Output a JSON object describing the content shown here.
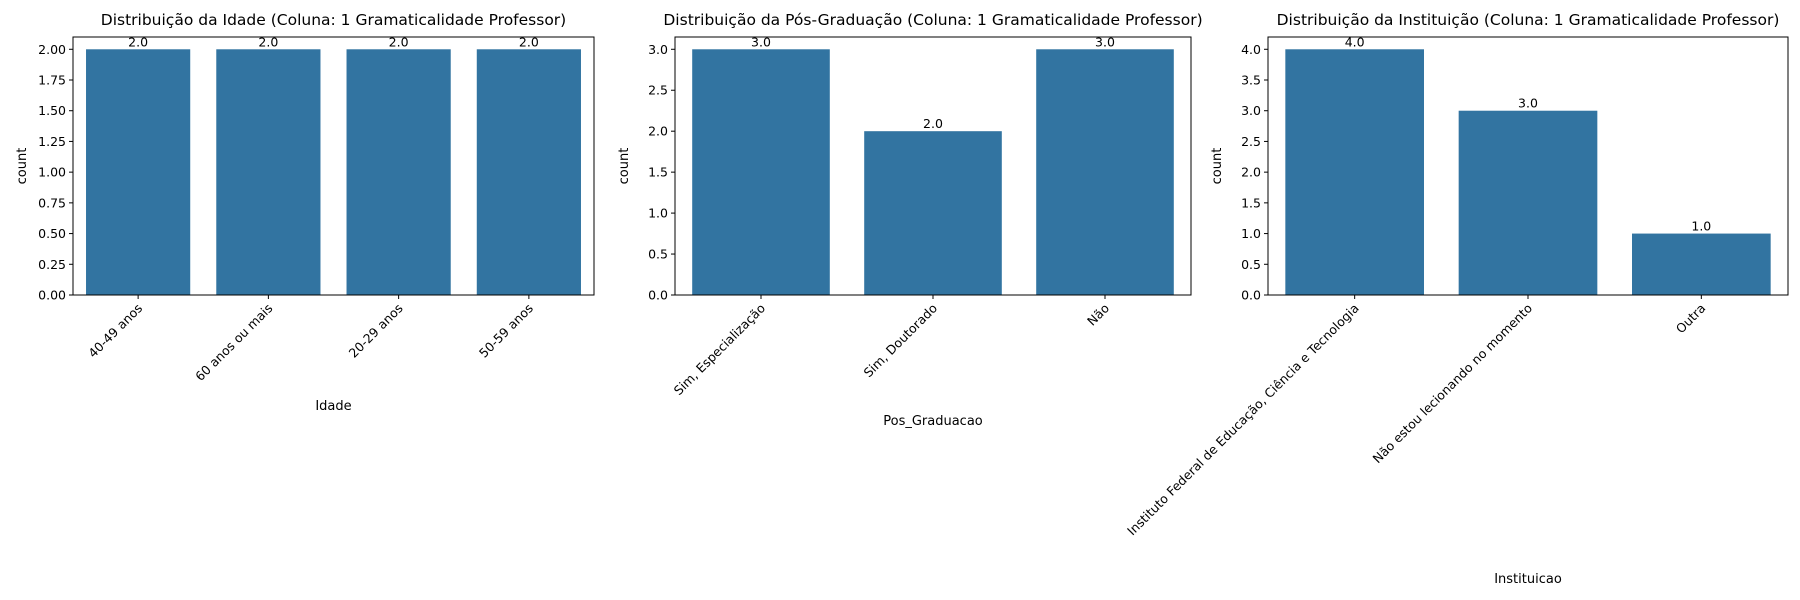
{
  "colors": {
    "bar": "#3274a1",
    "axis": "#000000",
    "background": "#ffffff"
  },
  "chart_data": [
    {
      "type": "bar",
      "title": "Distribuição da Idade (Coluna: 1 Gramaticalidade Professor)",
      "xlabel": "Idade",
      "ylabel": "count",
      "categories": [
        "40-49 anos",
        "60 anos ou mais",
        "20-29 anos",
        "50-59 anos"
      ],
      "values": [
        2,
        2,
        2,
        2
      ],
      "value_labels": [
        "2.0",
        "2.0",
        "2.0",
        "2.0"
      ],
      "ylim": [
        0,
        2.1
      ],
      "yticks": [
        0,
        0.25,
        0.5,
        0.75,
        1.0,
        1.25,
        1.5,
        1.75,
        2.0
      ],
      "ytick_labels": [
        "0.00",
        "0.25",
        "0.50",
        "0.75",
        "1.00",
        "1.25",
        "1.50",
        "1.75",
        "2.00"
      ],
      "grid": false,
      "xtick_rotation": 45
    },
    {
      "type": "bar",
      "title": "Distribuição da Pós-Graduação (Coluna: 1 Gramaticalidade Professor)",
      "xlabel": "Pos_Graduacao",
      "ylabel": "count",
      "categories": [
        "Sim, Especialização",
        "Sim, Doutorado",
        "Não"
      ],
      "values": [
        3,
        2,
        3
      ],
      "value_labels": [
        "3.0",
        "2.0",
        "3.0"
      ],
      "ylim": [
        0,
        3.15
      ],
      "yticks": [
        0,
        0.5,
        1.0,
        1.5,
        2.0,
        2.5,
        3.0
      ],
      "ytick_labels": [
        "0.0",
        "0.5",
        "1.0",
        "1.5",
        "2.0",
        "2.5",
        "3.0"
      ],
      "grid": false,
      "xtick_rotation": 45
    },
    {
      "type": "bar",
      "title": "Distribuição da Instituição (Coluna: 1 Gramaticalidade Professor)",
      "xlabel": "Instituicao",
      "ylabel": "count",
      "categories": [
        "Instituto Federal de Educação, Ciência e Tecnologia",
        "Não estou lecionando no momento",
        "Outra"
      ],
      "values": [
        4,
        3,
        1
      ],
      "value_labels": [
        "4.0",
        "3.0",
        "1.0"
      ],
      "ylim": [
        0,
        4.2
      ],
      "yticks": [
        0,
        0.5,
        1.0,
        1.5,
        2.0,
        2.5,
        3.0,
        3.5,
        4.0
      ],
      "ytick_labels": [
        "0.0",
        "0.5",
        "1.0",
        "1.5",
        "2.0",
        "2.5",
        "3.0",
        "3.5",
        "4.0"
      ],
      "grid": false,
      "xtick_rotation": 45
    }
  ]
}
